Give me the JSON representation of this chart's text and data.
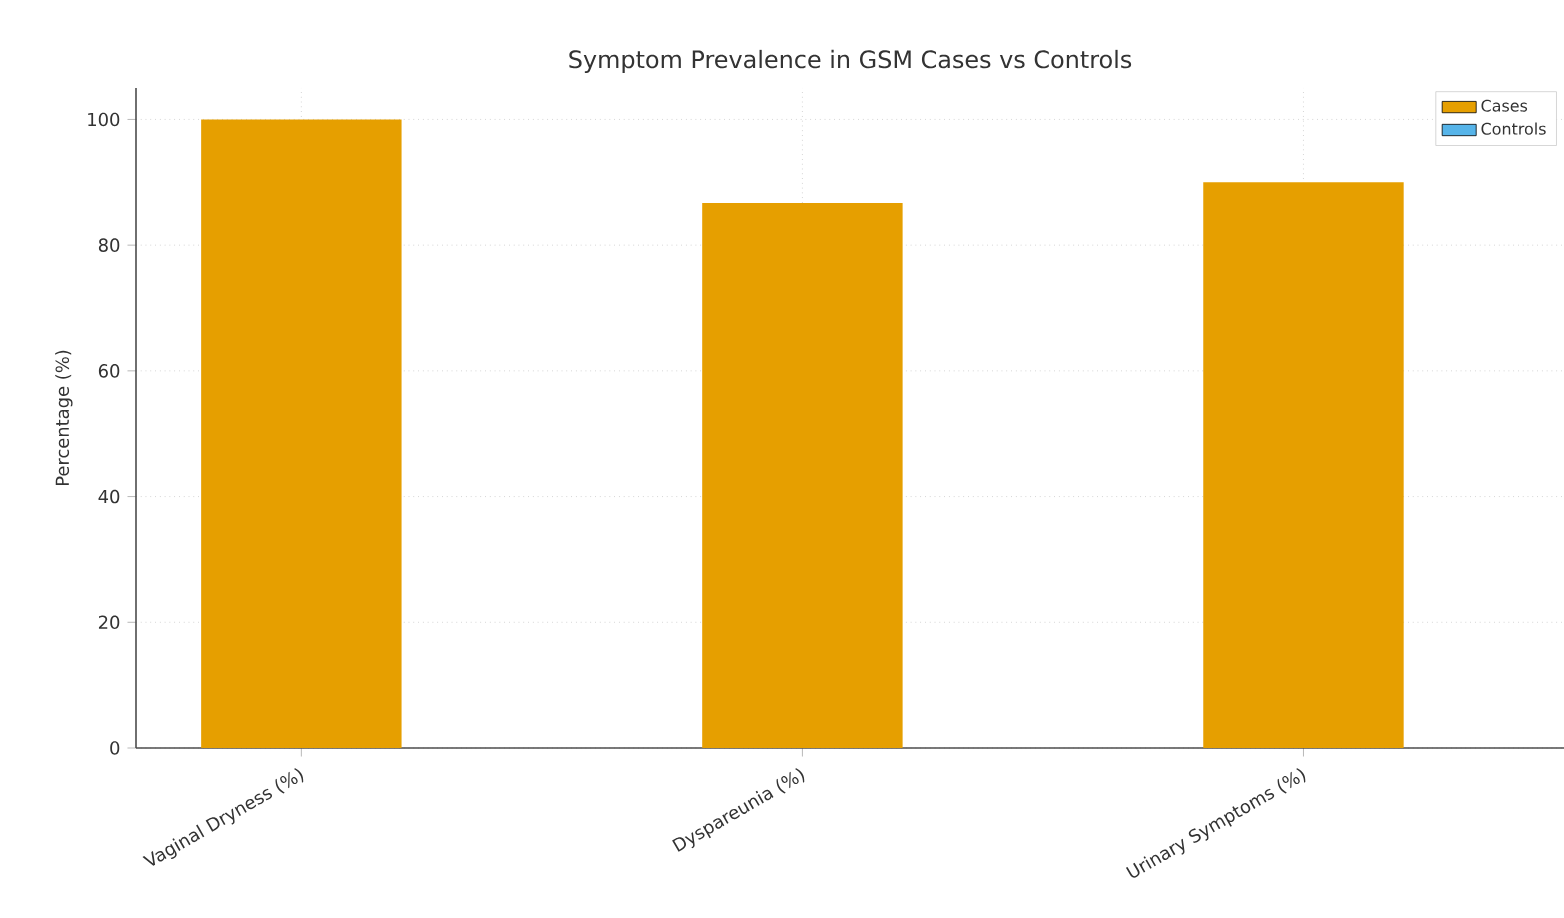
{
  "chart_data": {
    "type": "bar",
    "title": "Symptom Prevalence in GSM Cases vs Controls",
    "ylabel": "Percentage (%)",
    "categories": [
      "Vaginal Dryness (%)",
      "Dyspareunia (%)",
      "Urinary Symptoms (%)"
    ],
    "series": [
      {
        "name": "Cases",
        "color": "#e69f00",
        "values": [
          100,
          86.7,
          90
        ]
      },
      {
        "name": "Controls",
        "color": "#56b4e9",
        "values": [
          0,
          0,
          0
        ]
      }
    ],
    "ylim": [
      0,
      105
    ],
    "yticks": [
      0,
      20,
      40,
      60,
      80,
      100
    ],
    "grid": true,
    "legend": "top right"
  }
}
